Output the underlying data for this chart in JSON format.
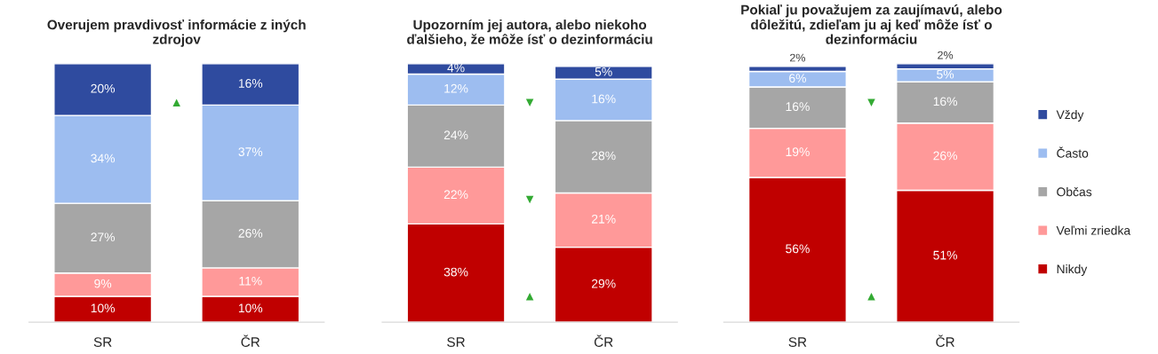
{
  "chart_data": [
    {
      "type": "bar",
      "title": "Overujem pravdivosť informácie z iných zdrojov",
      "categories": [
        "SR",
        "ČR"
      ],
      "stacked": true,
      "series": [
        {
          "color": "#c00000",
          "values": [
            10,
            10
          ],
          "value_labels": [
            "10%",
            "10%"
          ]
        },
        {
          "color": "#ff9999",
          "values": [
            9,
            11
          ],
          "value_labels": [
            "9%",
            "11%"
          ]
        },
        {
          "color": "#a6a6a6",
          "values": [
            27,
            26
          ],
          "value_labels": [
            "27%",
            "26%"
          ]
        },
        {
          "color": "#9dbdf0",
          "values": [
            34,
            37
          ],
          "value_labels": [
            "34%",
            "37%"
          ]
        },
        {
          "color": "#2f4b9f",
          "values": [
            20,
            16
          ],
          "value_labels": [
            "20%",
            "16%"
          ]
        }
      ],
      "annotations": [
        "▲"
      ]
    },
    {
      "type": "bar",
      "title": "Upozorním jej autora, alebo niekoho ďalšieho, že môže ísť o dezinformáciu",
      "categories": [
        "SR",
        "ČR"
      ],
      "stacked": true,
      "series": [
        {
          "color": "#c00000",
          "values": [
            38,
            29
          ],
          "value_labels": [
            "38%",
            "29%"
          ]
        },
        {
          "color": "#ff9999",
          "values": [
            22,
            21
          ],
          "value_labels": [
            "22%",
            "21%"
          ]
        },
        {
          "color": "#a6a6a6",
          "values": [
            24,
            28
          ],
          "value_labels": [
            "24%",
            "28%"
          ]
        },
        {
          "color": "#9dbdf0",
          "values": [
            12,
            16
          ],
          "value_labels": [
            "12%",
            "16%"
          ]
        },
        {
          "color": "#2f4b9f",
          "values": [
            4,
            5
          ],
          "value_labels": [
            "4%",
            "5%"
          ]
        }
      ],
      "annotations": [
        "▼",
        "▼",
        "▲"
      ]
    },
    {
      "type": "bar",
      "title": "Pokiaľ ju považujem za zaujímavú, alebo dôležitú, zdieľam ju aj keď môže ísť o dezinformáciu",
      "categories": [
        "SR",
        "ČR"
      ],
      "stacked": true,
      "legend": "right",
      "series": [
        {
          "name": "Nikdy",
          "color": "#c00000",
          "values": [
            56,
            51
          ],
          "value_labels": [
            "56%",
            "51%"
          ]
        },
        {
          "name": "Veľmi zriedka",
          "color": "#ff9999",
          "values": [
            19,
            26
          ],
          "value_labels": [
            "19%",
            "26%"
          ]
        },
        {
          "name": "Občas",
          "color": "#a6a6a6",
          "values": [
            16,
            16
          ],
          "value_labels": [
            "16%",
            "16%"
          ]
        },
        {
          "name": "Často",
          "color": "#9dbdf0",
          "values": [
            6,
            5
          ],
          "value_labels": [
            "6%",
            "5%"
          ]
        },
        {
          "name": "Vždy",
          "color": "#2f4b9f",
          "values": [
            2,
            2
          ],
          "value_labels": [
            "2%",
            "2%"
          ]
        }
      ],
      "annotations": [
        "▼",
        "▲"
      ]
    }
  ]
}
